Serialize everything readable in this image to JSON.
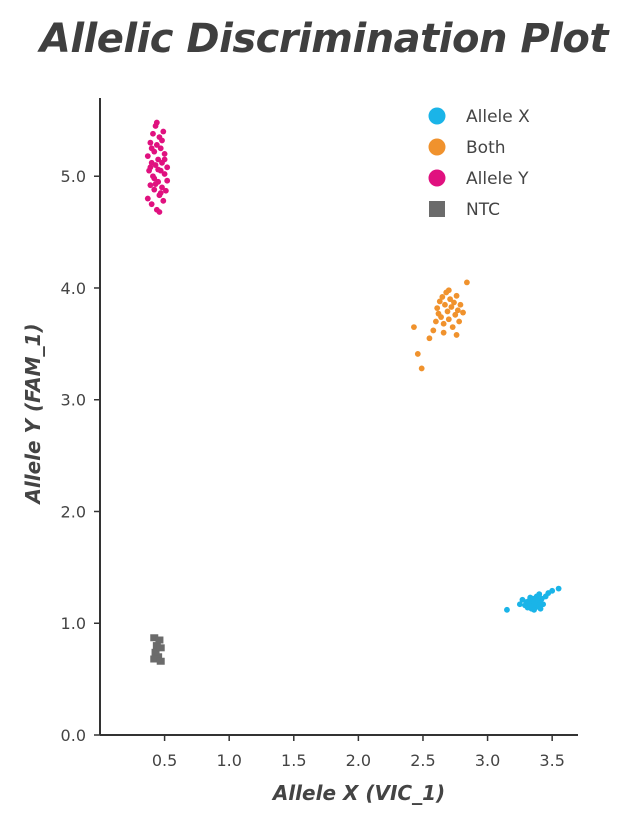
{
  "chart_data": {
    "type": "scatter",
    "title": "Allelic Discrimination Plot",
    "xlabel": "Allele X (VIC_1)",
    "ylabel": "Allele Y (FAM_1)",
    "xlim": [
      0,
      3.7
    ],
    "ylim": [
      0,
      5.7
    ],
    "xticks": [
      "0.5",
      "1.0",
      "1.5",
      "2.0",
      "2.5",
      "3.0",
      "3.5"
    ],
    "yticks": [
      "0.0",
      "1.0",
      "2.0",
      "3.0",
      "4.0",
      "5.0"
    ],
    "grid": false,
    "legend_position": "top-right",
    "series": [
      {
        "name": "Allele X",
        "color": "#1ab4e8",
        "marker": "circle",
        "points": [
          [
            3.15,
            1.12
          ],
          [
            3.25,
            1.17
          ],
          [
            3.27,
            1.21
          ],
          [
            3.29,
            1.16
          ],
          [
            3.3,
            1.19
          ],
          [
            3.31,
            1.14
          ],
          [
            3.32,
            1.2
          ],
          [
            3.33,
            1.17
          ],
          [
            3.34,
            1.13
          ],
          [
            3.35,
            1.22
          ],
          [
            3.35,
            1.16
          ],
          [
            3.36,
            1.19
          ],
          [
            3.37,
            1.14
          ],
          [
            3.38,
            1.24
          ],
          [
            3.38,
            1.18
          ],
          [
            3.39,
            1.21
          ],
          [
            3.4,
            1.15
          ],
          [
            3.4,
            1.26
          ],
          [
            3.41,
            1.19
          ],
          [
            3.42,
            1.22
          ],
          [
            3.43,
            1.17
          ],
          [
            3.45,
            1.24
          ],
          [
            3.47,
            1.27
          ],
          [
            3.5,
            1.29
          ],
          [
            3.55,
            1.31
          ],
          [
            3.36,
            1.12
          ],
          [
            3.33,
            1.23
          ],
          [
            3.41,
            1.13
          ]
        ]
      },
      {
        "name": "Both",
        "color": "#f0922d",
        "marker": "circle",
        "points": [
          [
            2.43,
            3.65
          ],
          [
            2.46,
            3.41
          ],
          [
            2.49,
            3.28
          ],
          [
            2.55,
            3.55
          ],
          [
            2.58,
            3.62
          ],
          [
            2.6,
            3.7
          ],
          [
            2.61,
            3.82
          ],
          [
            2.62,
            3.77
          ],
          [
            2.63,
            3.88
          ],
          [
            2.64,
            3.74
          ],
          [
            2.65,
            3.92
          ],
          [
            2.66,
            3.68
          ],
          [
            2.67,
            3.85
          ],
          [
            2.68,
            3.96
          ],
          [
            2.69,
            3.79
          ],
          [
            2.7,
            3.72
          ],
          [
            2.71,
            3.9
          ],
          [
            2.72,
            3.83
          ],
          [
            2.73,
            3.65
          ],
          [
            2.74,
            3.87
          ],
          [
            2.75,
            3.76
          ],
          [
            2.76,
            3.93
          ],
          [
            2.77,
            3.8
          ],
          [
            2.78,
            3.7
          ],
          [
            2.79,
            3.85
          ],
          [
            2.81,
            3.78
          ],
          [
            2.84,
            4.05
          ],
          [
            2.76,
            3.58
          ],
          [
            2.66,
            3.6
          ],
          [
            2.7,
            3.98
          ]
        ]
      },
      {
        "name": "Allele Y",
        "color": "#e0117f",
        "marker": "circle",
        "points": [
          [
            0.37,
            5.18
          ],
          [
            0.37,
            4.8
          ],
          [
            0.38,
            5.05
          ],
          [
            0.39,
            5.3
          ],
          [
            0.39,
            4.92
          ],
          [
            0.4,
            5.12
          ],
          [
            0.4,
            4.75
          ],
          [
            0.41,
            5.38
          ],
          [
            0.41,
            5.0
          ],
          [
            0.42,
            5.22
          ],
          [
            0.42,
            4.88
          ],
          [
            0.43,
            5.45
          ],
          [
            0.43,
            5.1
          ],
          [
            0.44,
            4.7
          ],
          [
            0.44,
            5.28
          ],
          [
            0.45,
            4.95
          ],
          [
            0.45,
            5.15
          ],
          [
            0.46,
            5.35
          ],
          [
            0.46,
            4.83
          ],
          [
            0.47,
            5.05
          ],
          [
            0.47,
            5.25
          ],
          [
            0.48,
            4.9
          ],
          [
            0.48,
            5.12
          ],
          [
            0.49,
            5.4
          ],
          [
            0.49,
            4.78
          ],
          [
            0.5,
            5.02
          ],
          [
            0.5,
            5.2
          ],
          [
            0.51,
            4.87
          ],
          [
            0.52,
            5.08
          ],
          [
            0.52,
            4.96
          ],
          [
            0.44,
            5.48
          ],
          [
            0.46,
            4.68
          ],
          [
            0.4,
            5.25
          ],
          [
            0.48,
            5.32
          ],
          [
            0.42,
            4.98
          ],
          [
            0.45,
            5.06
          ],
          [
            0.39,
            5.08
          ],
          [
            0.47,
            4.85
          ],
          [
            0.43,
            4.93
          ],
          [
            0.5,
            5.15
          ]
        ]
      },
      {
        "name": "NTC",
        "color": "#6b6b6b",
        "marker": "square",
        "points": [
          [
            0.42,
            0.87
          ],
          [
            0.44,
            0.8
          ],
          [
            0.46,
            0.85
          ],
          [
            0.43,
            0.74
          ],
          [
            0.45,
            0.7
          ],
          [
            0.47,
            0.78
          ],
          [
            0.42,
            0.68
          ],
          [
            0.47,
            0.66
          ]
        ]
      }
    ]
  }
}
